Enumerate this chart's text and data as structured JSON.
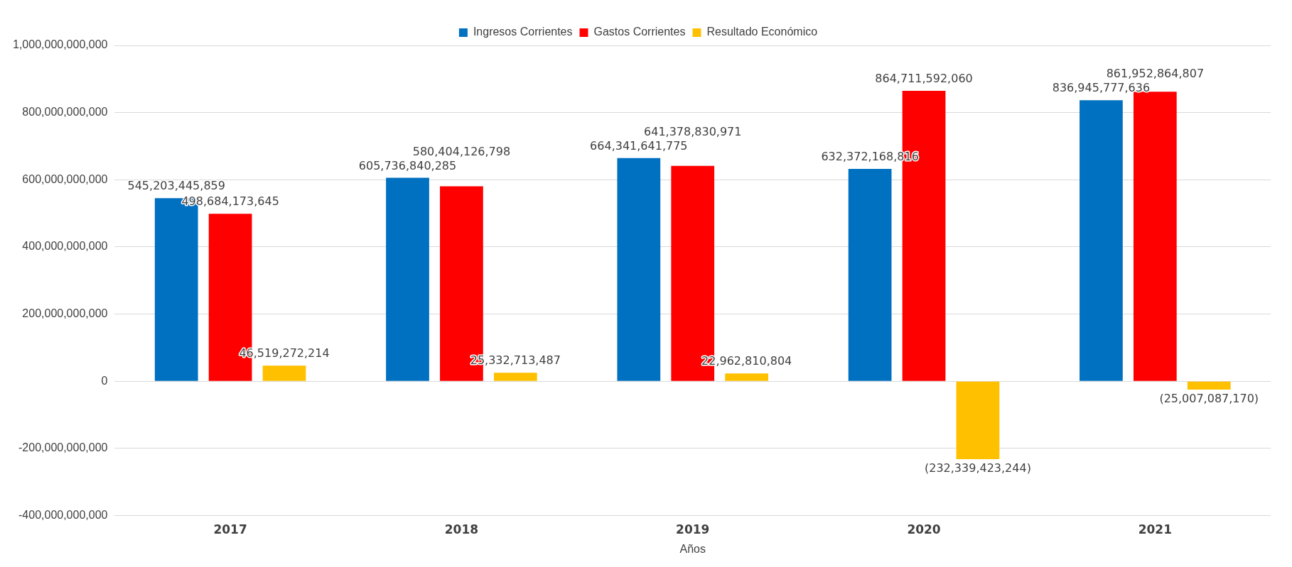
{
  "chart_data": {
    "type": "bar",
    "xlabel": "Años",
    "categories": [
      "2017",
      "2018",
      "2019",
      "2020",
      "2021"
    ],
    "series": [
      {
        "name": "Ingresos Corrientes",
        "color": "#0070c0",
        "values": [
          545203445859,
          605736840285,
          664341641775,
          632372168816,
          836945777636
        ],
        "value_labels": [
          "545,203,445,859",
          "605,736,840,285",
          "664,341,641,775",
          "632,372,168,816",
          "836,945,777,636"
        ]
      },
      {
        "name": "Gastos Corrientes",
        "color": "#ff0000",
        "values": [
          498684173645,
          580404126798,
          641378830971,
          864711592060,
          861952864807
        ],
        "value_labels": [
          "498,684,173,645",
          "580,404,126,798",
          "641,378,830,971",
          "864,711,592,060",
          "861,952,864,807"
        ]
      },
      {
        "name": "Resultado Económico",
        "color": "#ffc000",
        "values": [
          46519272214,
          25332713487,
          22962810804,
          -232339423244,
          -25007087170
        ],
        "value_labels": [
          "46,519,272,214",
          "25,332,713,487",
          "22,962,810,804",
          "(232,339,423,244)",
          "(25,007,087,170)"
        ]
      }
    ],
    "ylim": [
      -400000000000,
      1000000000000
    ],
    "yticks": [
      {
        "value": -400000000000,
        "label": "-400,000,000,000"
      },
      {
        "value": -200000000000,
        "label": "-200,000,000,000"
      },
      {
        "value": 0,
        "label": "0"
      },
      {
        "value": 200000000000,
        "label": "200,000,000,000"
      },
      {
        "value": 400000000000,
        "label": "400,000,000,000"
      },
      {
        "value": 600000000000,
        "label": "600,000,000,000"
      },
      {
        "value": 800000000000,
        "label": "800,000,000,000"
      },
      {
        "value": 1000000000000,
        "label": "1,000,000,000,000"
      }
    ],
    "grid": "y",
    "legend": "top"
  }
}
